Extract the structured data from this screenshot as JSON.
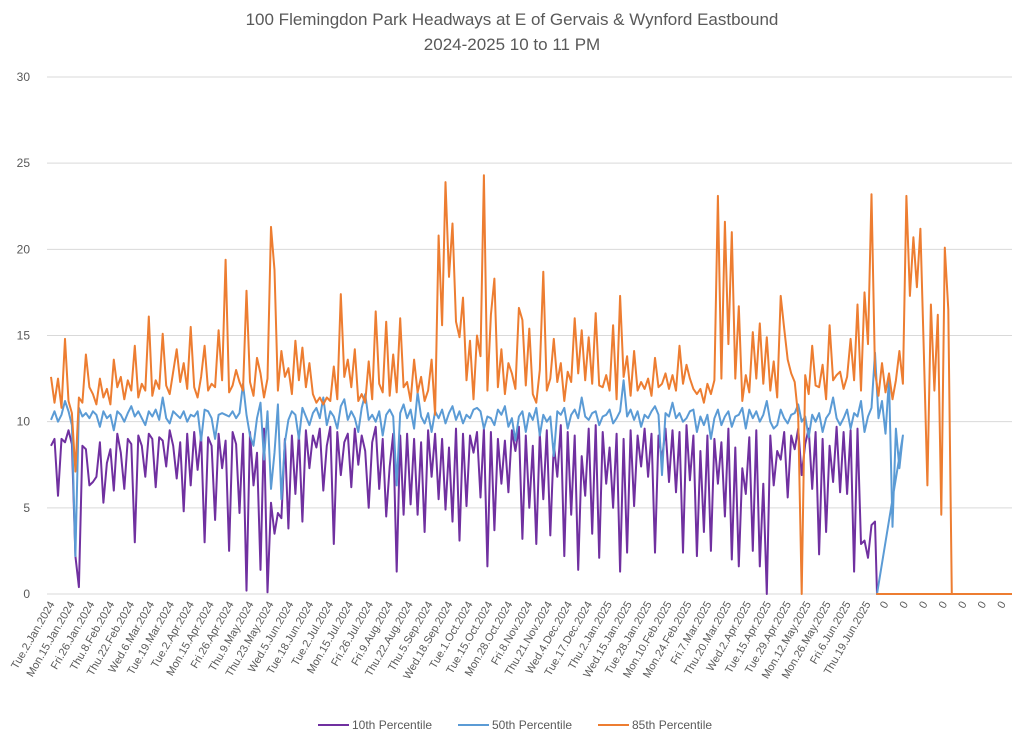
{
  "chart_data": {
    "type": "line",
    "title": "100 Flemingdon Park Headways at E of Gervais & Wynford Eastbound",
    "subtitle": "2024-2025 10 to 11 PM",
    "xlabel": "",
    "ylabel": "",
    "ylim": [
      0,
      30
    ],
    "yticks": [
      0,
      5,
      10,
      15,
      20,
      25,
      30
    ],
    "grid": true,
    "legend_position": "bottom",
    "x_tick_labels": [
      "Tue.2.Jan.2024",
      "Mon.15.Jan.2024",
      "Fri.26.Jan.2024",
      "Thu.8.Feb.2024",
      "Thu.22.Feb.2024",
      "Wed.6.Mar.2024",
      "Tue.19.Mar.2024",
      "Tue.2.Apr.2024",
      "Mon.15.Apr.2024",
      "Fri.26.Apr.2024",
      "Thu.9.May.2024",
      "Thu.23.May.2024",
      "Wed.5.Jun.2024",
      "Tue.18.Jun.2024",
      "Tue.2.Jul.2024",
      "Mon.15.Jul.2024",
      "Fri.26.Jul.2024",
      "Fri.9.Aug.2024",
      "Thu.22.Aug.2024",
      "Thu.5.Sep.2024",
      "Wed.18.Sep.2024",
      "Tue.1.Oct.2024",
      "Tue.15.Oct.2024",
      "Mon.28.Oct.2024",
      "Fri.8.Nov.2024",
      "Thu.21.Nov.2024",
      "Wed.4.Dec.2024",
      "Tue.17.Dec.2024",
      "Thu.2.Jan.2025",
      "Wed.15.Jan.2025",
      "Tue.28.Jan.2025",
      "Mon.10.Feb.2025",
      "Mon.24.Feb.2025",
      "Fri.7.Mar.2025",
      "Thu.20.Mar.2025",
      "Wed.2.Apr.2025",
      "Tue.15.Apr.2025",
      "Tue.29.Apr.2025",
      "Mon.12.May.2025",
      "Mon.26.May.2025",
      "Fri.6.Jun.2025",
      "Thu.19.Jun.2025",
      "0",
      "0",
      "0",
      "0",
      "0",
      "0",
      "0"
    ],
    "dated_label_count": 42,
    "trailing_zero_label_count": 7,
    "series": [
      {
        "name": "10th Percentile",
        "color": "#7030a0",
        "values": [
          8.6,
          9.0,
          5.7,
          9.0,
          8.8,
          9.5,
          8.7,
          2.2,
          0.4,
          8.6,
          8.4,
          6.3,
          6.5,
          6.8,
          8.8,
          5.3,
          7.6,
          8.4,
          6.0,
          9.3,
          8.2,
          6.1,
          9.0,
          8.7,
          3.0,
          9.2,
          8.6,
          6.8,
          9.3,
          9.0,
          6.2,
          9.1,
          8.9,
          7.4,
          9.5,
          8.6,
          6.7,
          8.8,
          4.8,
          9.3,
          6.3,
          9.4,
          7.2,
          9.2,
          3.0,
          9.1,
          8.6,
          4.3,
          9.3,
          7.3,
          8.9,
          2.5,
          9.4,
          8.7,
          4.7,
          9.3,
          0.2,
          9.4,
          6.3,
          8.2,
          1.4,
          9.6,
          0.1,
          5.3,
          3.5,
          4.7,
          4.4,
          9.0,
          3.8,
          9.2,
          5.8,
          9.3,
          4.2,
          9.5,
          7.3,
          9.2,
          8.5,
          9.6,
          6.0,
          8.6,
          9.7,
          2.9,
          9.4,
          6.9,
          8.8,
          9.3,
          6.2,
          9.6,
          7.5,
          9.2,
          8.3,
          5.0,
          8.8,
          9.7,
          6.1,
          9.0,
          4.5,
          7.4,
          9.3,
          1.3,
          9.2,
          4.6,
          9.3,
          5.2,
          9.0,
          4.6,
          8.8,
          3.6,
          9.5,
          6.8,
          9.3,
          5.5,
          9.0,
          4.9,
          8.5,
          4.2,
          9.6,
          3.1,
          9.3,
          5.1,
          9.2,
          8.2,
          9.4,
          5.6,
          9.6,
          1.6,
          9.4,
          3.7,
          9.0,
          6.4,
          8.9,
          5.9,
          9.5,
          8.3,
          9.7,
          3.2,
          9.2,
          5.0,
          8.6,
          2.9,
          9.3,
          5.5,
          9.5,
          3.4,
          8.7,
          6.8,
          9.8,
          2.2,
          9.4,
          4.6,
          9.2,
          1.4,
          8.0,
          5.7,
          9.6,
          3.5,
          9.8,
          2.1,
          9.4,
          6.4,
          8.5,
          5.0,
          9.3,
          1.3,
          9.0,
          2.4,
          9.5,
          5.1,
          9.2,
          7.4,
          9.6,
          6.8,
          9.3,
          2.4,
          9.2,
          7.8,
          9.6,
          6.5,
          9.5,
          5.9,
          9.4,
          2.4,
          9.8,
          6.6,
          9.2,
          2.2,
          8.3,
          3.6,
          9.2,
          2.5,
          9.0,
          6.4,
          8.8,
          4.5,
          9.6,
          2.0,
          8.5,
          1.6,
          7.3,
          5.8,
          9.1,
          2.5,
          9.5,
          1.6,
          6.4,
          0.0,
          9.2,
          6.3,
          8.3,
          7.8,
          9.4,
          5.6,
          9.2,
          8.4,
          9.6,
          6.9,
          8.7,
          9.6,
          6.1,
          9.4,
          2.3,
          9.0,
          3.6,
          8.6,
          6.5,
          9.7,
          5.9,
          9.4,
          5.8,
          9.5,
          1.3,
          9.6,
          2.9,
          3.1,
          2.1,
          4.0,
          4.2
        ],
        "tail_zero_values": [
          0,
          0,
          0,
          0,
          0,
          0,
          0
        ]
      },
      {
        "name": "50th Percentile",
        "color": "#5b9bd5",
        "values": [
          10.1,
          10.6,
          10.0,
          10.4,
          11.2,
          10.6,
          9.8,
          2.2,
          10.8,
          10.3,
          10.5,
          10.2,
          10.6,
          10.4,
          9.7,
          10.6,
          10.2,
          10.4,
          9.5,
          10.6,
          10.4,
          10.0,
          10.5,
          10.9,
          10.3,
          10.6,
          10.2,
          9.8,
          10.6,
          10.3,
          10.7,
          10.1,
          11.4,
          10.2,
          9.9,
          10.6,
          10.4,
          10.2,
          10.6,
          10.0,
          10.4,
          10.3,
          10.6,
          8.9,
          10.7,
          10.6,
          10.2,
          9.0,
          10.4,
          10.5,
          10.4,
          10.3,
          10.6,
          10.2,
          10.5,
          12.2,
          10.4,
          9.2,
          8.6,
          10.2,
          11.1,
          7.8,
          10.6,
          6.1,
          8.2,
          11.0,
          5.5,
          8.8,
          10.1,
          10.6,
          10.4,
          9.0,
          10.8,
          10.3,
          9.8,
          10.5,
          10.8,
          10.2,
          11.4,
          9.8,
          10.6,
          10.3,
          9.6,
          10.9,
          11.3,
          10.1,
          10.6,
          10.2,
          9.4,
          10.8,
          11.6,
          10.1,
          10.4,
          10.0,
          10.6,
          9.2,
          10.4,
          10.7,
          10.3,
          6.3,
          10.5,
          11.0,
          10.2,
          10.7,
          9.6,
          11.7,
          10.3,
          9.9,
          10.5,
          9.4,
          10.6,
          10.2,
          10.7,
          9.9,
          10.5,
          10.9,
          10.1,
          10.6,
          9.9,
          10.4,
          10.2,
          10.7,
          10.8,
          10.6,
          9.6,
          10.3,
          10.2,
          9.8,
          10.7,
          10.4,
          10.9,
          9.7,
          10.2,
          8.9,
          10.3,
          10.6,
          9.4,
          10.5,
          10.1,
          10.8,
          9.2,
          10.4,
          10.0,
          10.3,
          8.0,
          10.6,
          10.4,
          10.8,
          9.6,
          10.4,
          10.7,
          10.2,
          11.4,
          10.3,
          10.1,
          10.5,
          10.6,
          9.8,
          10.3,
          10.4,
          10.7,
          9.9,
          10.2,
          10.6,
          12.4,
          10.3,
          10.7,
          10.1,
          10.6,
          9.7,
          10.4,
          10.2,
          10.6,
          10.9,
          10.4,
          6.9,
          10.5,
          10.3,
          11.1,
          10.2,
          10.5,
          10.0,
          10.2,
          10.6,
          10.7,
          9.4,
          10.3,
          9.8,
          10.4,
          9.0,
          10.2,
          10.7,
          9.8,
          10.3,
          10.6,
          9.7,
          10.3,
          10.4,
          10.8,
          9.6,
          10.7,
          10.2,
          10.6,
          10.0,
          10.4,
          11.2,
          10.0,
          9.6,
          9.8,
          10.7,
          10.2,
          9.9,
          10.4,
          10.5,
          11.0,
          10.0,
          10.3,
          9.1,
          10.4,
          10.0,
          10.5,
          9.4,
          10.2,
          10.5,
          11.4,
          10.2,
          9.8,
          10.2,
          10.7,
          9.6,
          10.5,
          10.3,
          11.2,
          9.4,
          10.3,
          10.8,
          14.0,
          10.2,
          11.2,
          9.3,
          12.5,
          3.9,
          9.6,
          7.3,
          9.2
        ],
        "tail_zero_values": [
          0,
          0,
          0,
          0,
          0,
          0,
          0
        ]
      },
      {
        "name": "85th Percentile",
        "color": "#ed7d31",
        "values": [
          12.6,
          11.1,
          12.5,
          10.8,
          14.8,
          11.2,
          10.5,
          7.1,
          11.4,
          11.1,
          13.9,
          12.0,
          11.6,
          11.0,
          12.5,
          11.4,
          11.9,
          11.0,
          13.6,
          12.0,
          12.6,
          11.3,
          12.4,
          11.8,
          14.4,
          11.4,
          12.2,
          11.8,
          16.1,
          11.5,
          12.4,
          11.9,
          15.1,
          12.1,
          11.6,
          12.9,
          14.2,
          12.3,
          13.4,
          11.9,
          15.5,
          12.0,
          11.4,
          12.6,
          14.4,
          11.8,
          12.2,
          12.0,
          15.3,
          12.4,
          19.4,
          11.7,
          12.1,
          13.0,
          12.3,
          11.8,
          17.6,
          12.3,
          11.5,
          13.7,
          12.8,
          11.4,
          12.5,
          21.3,
          18.8,
          11.8,
          14.1,
          12.6,
          13.1,
          11.6,
          14.7,
          12.4,
          14.3,
          12.0,
          13.4,
          11.6,
          11.1,
          11.4,
          11.0,
          11.4,
          11.2,
          13.2,
          11.3,
          17.4,
          12.6,
          13.6,
          12.0,
          14.2,
          11.2,
          11.6,
          11.1,
          13.5,
          11.3,
          16.4,
          12.2,
          11.7,
          15.8,
          11.5,
          13.9,
          11.7,
          16.0,
          12.0,
          12.3,
          11.2,
          13.6,
          11.7,
          12.6,
          11.2,
          11.8,
          13.6,
          10.4,
          20.8,
          15.6,
          23.9,
          18.4,
          21.5,
          15.8,
          14.9,
          17.2,
          12.4,
          14.7,
          11.3,
          15.0,
          13.8,
          24.3,
          11.8,
          16.2,
          18.3,
          12.0,
          14.2,
          11.6,
          13.4,
          12.8,
          11.9,
          16.6,
          15.9,
          12.1,
          15.4,
          11.6,
          11.1,
          13.0,
          18.7,
          11.8,
          12.5,
          14.8,
          12.3,
          13.4,
          11.2,
          12.9,
          12.3,
          16.0,
          12.8,
          15.3,
          12.4,
          14.9,
          12.2,
          16.3,
          12.1,
          12.0,
          12.7,
          11.8,
          15.6,
          11.3,
          17.3,
          12.6,
          13.8,
          11.5,
          14.1,
          11.8,
          12.3,
          11.9,
          12.5,
          11.5,
          13.7,
          12.0,
          12.2,
          12.8,
          11.9,
          12.7,
          11.8,
          14.4,
          12.2,
          13.3,
          12.5,
          11.9,
          11.6,
          11.9,
          11.1,
          12.2,
          11.6,
          12.4,
          23.1,
          12.5,
          21.6,
          14.5,
          21.0,
          12.5,
          16.7,
          11.2,
          12.7,
          11.7,
          15.2,
          12.5,
          15.7,
          12.2,
          14.9,
          11.8,
          13.5,
          11.4,
          17.3,
          15.4,
          13.6,
          12.8,
          12.3,
          10.3,
          0.0,
          12.7,
          11.6,
          14.4,
          12.1,
          12.0,
          13.3,
          11.3,
          15.6,
          12.4,
          12.7,
          12.9,
          11.9,
          12.6,
          14.8,
          12.4,
          16.8,
          11.8,
          17.5,
          14.5,
          23.2,
          12.9,
          11.5,
          13.4,
          11.7,
          12.8,
          11.3,
          12.4,
          14.1,
          12.2,
          23.1,
          17.3,
          20.7,
          17.8,
          21.2,
          13.9,
          6.3,
          16.8,
          11.8,
          16.2,
          4.6,
          20.1,
          16.5,
          0.0
        ],
        "tail_zero_values": [
          0,
          0,
          0,
          0,
          0,
          0,
          0
        ]
      }
    ]
  }
}
